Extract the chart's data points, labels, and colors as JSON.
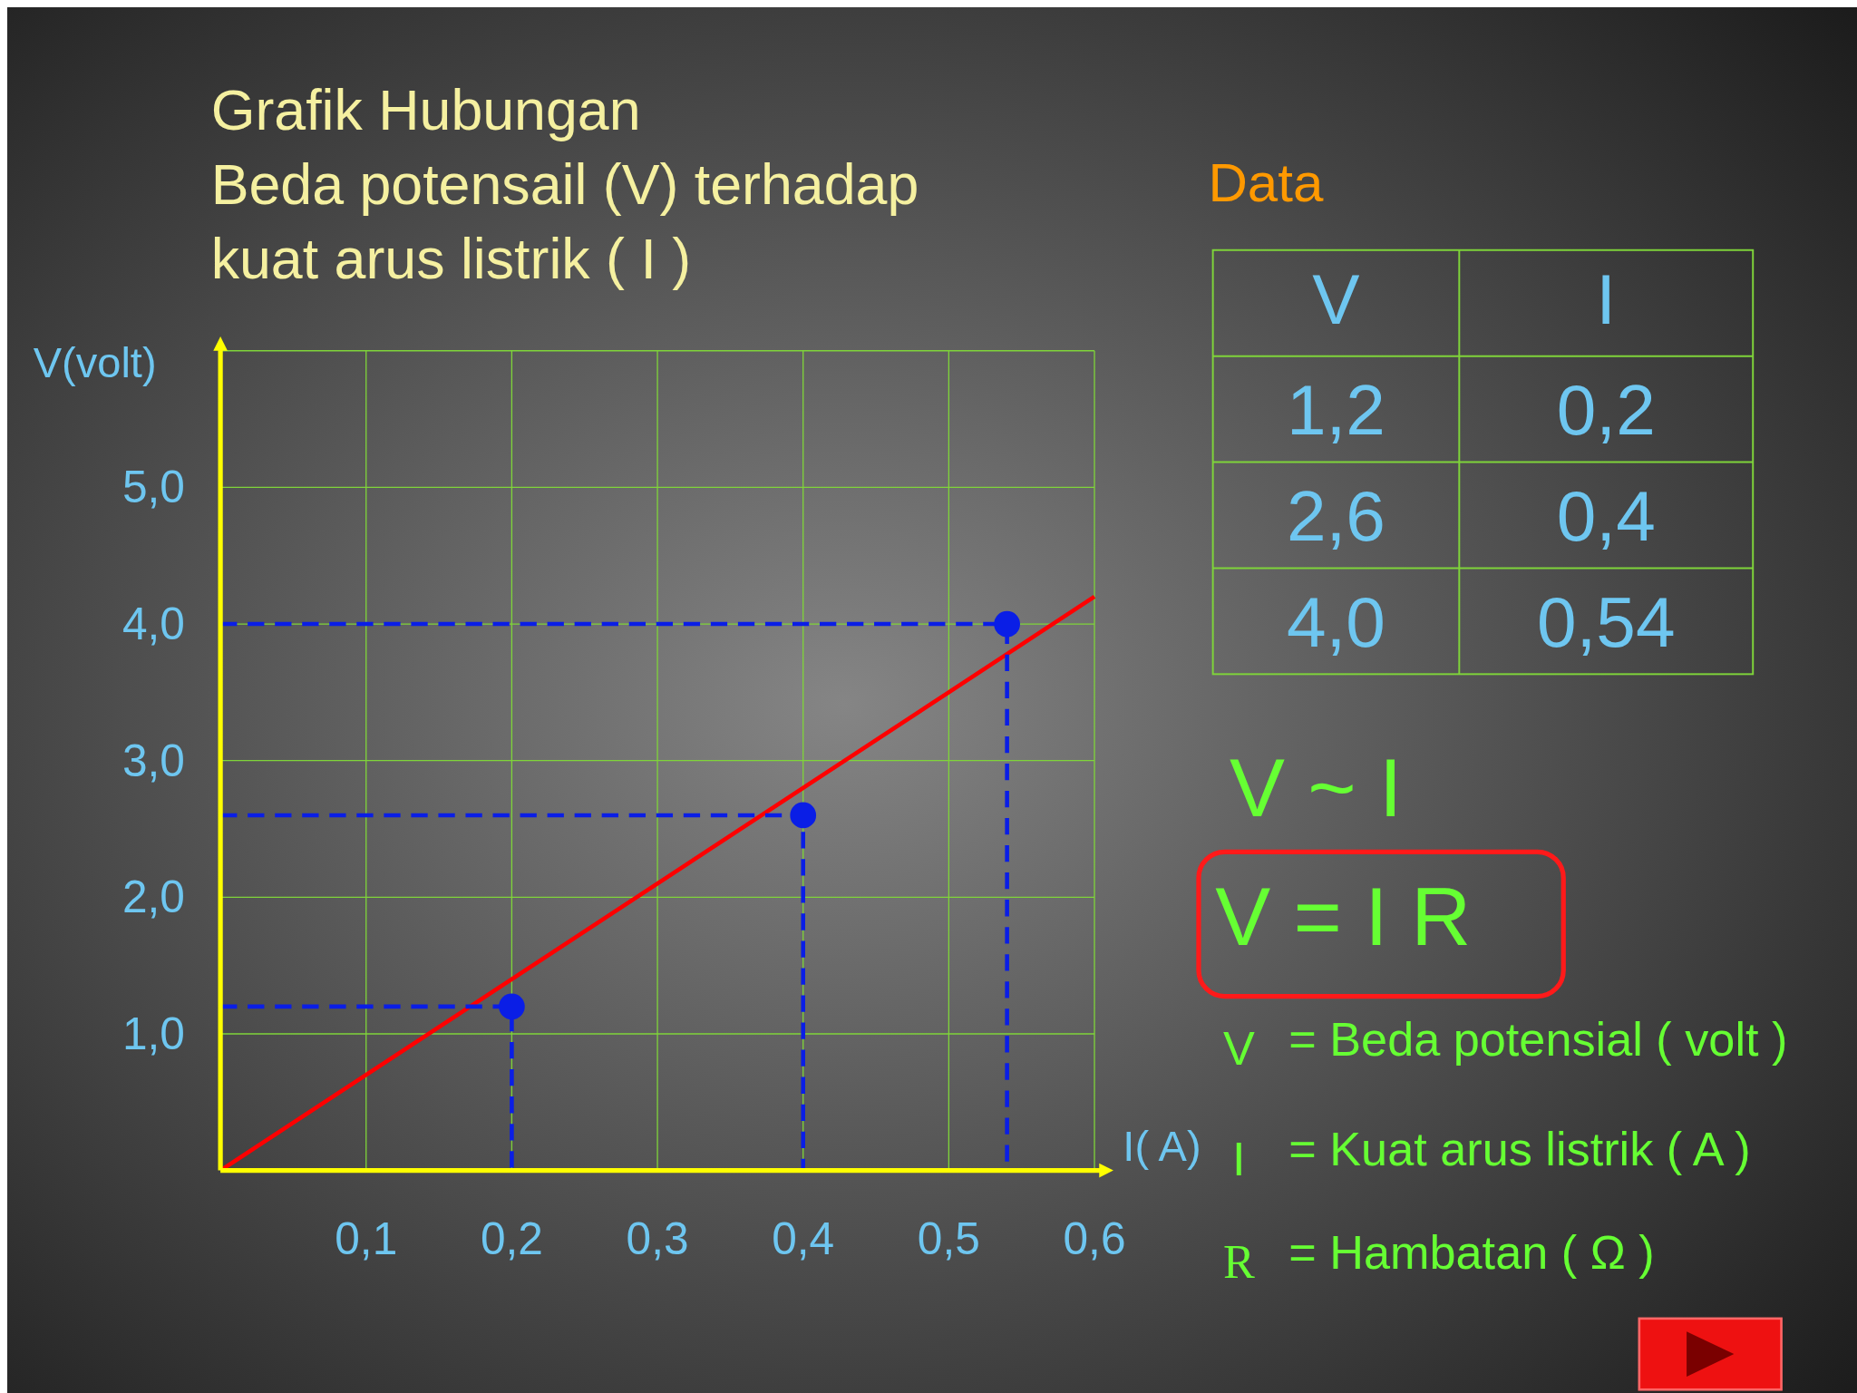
{
  "chart_data": {
    "type": "scatter",
    "title": "Grafik Hubungan\nBeda potensail (V) terhadap\nkuat arus listrik ( I )",
    "xlabel": "I( A)",
    "ylabel": "V(volt)",
    "xlim": [
      0,
      0.6
    ],
    "ylim": [
      0,
      6
    ],
    "xticks": [
      {
        "value": 0.1,
        "label": "0,1"
      },
      {
        "value": 0.2,
        "label": "0,2"
      },
      {
        "value": 0.3,
        "label": "0,3"
      },
      {
        "value": 0.4,
        "label": "0,4"
      },
      {
        "value": 0.5,
        "label": "0,5"
      },
      {
        "value": 0.6,
        "label": "0,6"
      }
    ],
    "yticks": [
      {
        "value": 1,
        "label": "1,0"
      },
      {
        "value": 2,
        "label": "2,0"
      },
      {
        "value": 3,
        "label": "3,0"
      },
      {
        "value": 4,
        "label": "4,0"
      },
      {
        "value": 5,
        "label": "5,0"
      },
      {
        "value": 6,
        "label": null
      }
    ],
    "grid": true,
    "series": [
      {
        "type": "line",
        "color": "#ff0000",
        "x": [
          0,
          0.6
        ],
        "values": [
          0,
          4.2
        ]
      },
      {
        "type": "line",
        "color": "#0a1ee6",
        "line_style": "dashed",
        "x": [
          0,
          0.2,
          0.2
        ],
        "values": [
          1.2,
          1.2,
          0
        ]
      },
      {
        "type": "line",
        "color": "#0a1ee6",
        "line_style": "dashed",
        "x": [
          0,
          0.4,
          0.4
        ],
        "values": [
          2.6,
          2.6,
          0
        ]
      },
      {
        "type": "line",
        "color": "#0a1ee6",
        "line_style": "dashed",
        "x": [
          0,
          0.54,
          0.54
        ],
        "values": [
          4.0,
          4.0,
          0
        ]
      },
      {
        "color": "#0a1ee6",
        "marker": "circle",
        "x": [
          0.2,
          0.4,
          0.54
        ],
        "values": [
          1.2,
          2.6,
          4.0
        ]
      }
    ],
    "annotations": [
      "Data",
      "V",
      "I",
      "V ~ I",
      "V = I R",
      "V",
      "= Beda potensial ( volt )",
      "I",
      "= Kuat arus listrik ( A )",
      "R",
      "= Hambatan ( Ω )",
      "1,2",
      "0,2",
      "2,6",
      "0,4",
      "4,0",
      "0,54"
    ]
  }
}
